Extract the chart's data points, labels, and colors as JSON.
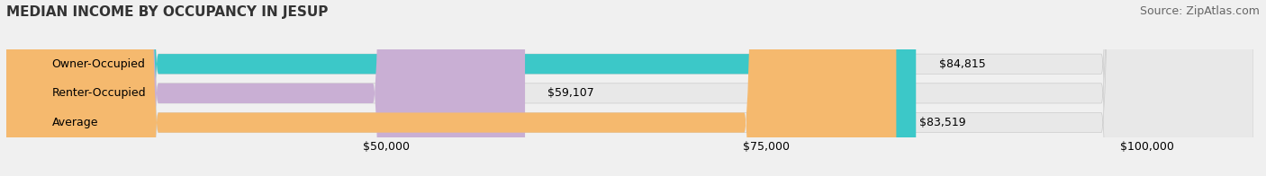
{
  "title": "MEDIAN INCOME BY OCCUPANCY IN JESUP",
  "source": "Source: ZipAtlas.com",
  "categories": [
    "Owner-Occupied",
    "Renter-Occupied",
    "Average"
  ],
  "values": [
    84815,
    59107,
    83519
  ],
  "bar_colors": [
    "#3cc8c8",
    "#c9afd4",
    "#f5b96e"
  ],
  "bar_labels": [
    "$84,815",
    "$59,107",
    "$83,519"
  ],
  "xlim": [
    25000,
    107000
  ],
  "xticks": [
    50000,
    75000,
    100000
  ],
  "xticklabels": [
    "$50,000",
    "$75,000",
    "$100,000"
  ],
  "background_color": "#f0f0f0",
  "bar_bg_color": "#e8e8e8",
  "title_fontsize": 11,
  "source_fontsize": 9,
  "label_fontsize": 9,
  "tick_fontsize": 9
}
